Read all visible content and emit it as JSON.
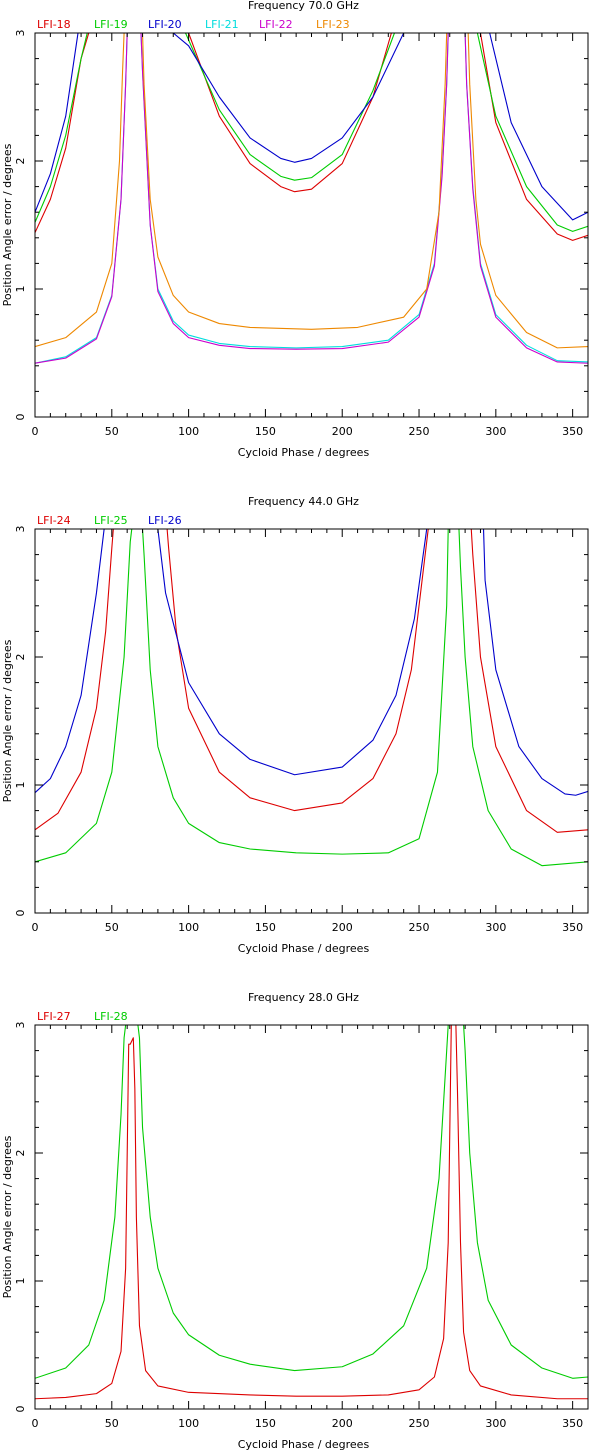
{
  "chart_data": [
    {
      "type": "line",
      "title": "Frequency  70.0 GHz",
      "xlabel": "Cycloid Phase / degrees",
      "ylabel": "Position Angle error / degrees",
      "xlim": [
        0,
        360
      ],
      "ylim": [
        0,
        3
      ],
      "xticks": [
        0,
        50,
        100,
        150,
        200,
        250,
        300,
        350
      ],
      "yticks": [
        0,
        1,
        2,
        3
      ],
      "grid": false,
      "legend_placement": "top-left",
      "series": [
        {
          "name": "LFI-18",
          "color": "#dd0000",
          "x": [
            0,
            10,
            20,
            30,
            35,
            100,
            120,
            140,
            160,
            169,
            180,
            200,
            220,
            232,
            290,
            300,
            320,
            340,
            350,
            360
          ],
          "y": [
            1.44,
            1.7,
            2.1,
            2.8,
            3.0,
            3.0,
            2.35,
            1.98,
            1.8,
            1.76,
            1.78,
            1.98,
            2.5,
            3.0,
            3.0,
            2.3,
            1.7,
            1.43,
            1.38,
            1.42
          ]
        },
        {
          "name": "LFI-19",
          "color": "#00cc00",
          "x": [
            0,
            10,
            20,
            30,
            34,
            98,
            120,
            140,
            160,
            169,
            180,
            200,
            220,
            234,
            288,
            300,
            320,
            340,
            350,
            360
          ],
          "y": [
            1.52,
            1.8,
            2.2,
            2.8,
            3.0,
            3.0,
            2.4,
            2.05,
            1.88,
            1.85,
            1.87,
            2.05,
            2.55,
            3.0,
            3.0,
            2.35,
            1.8,
            1.5,
            1.45,
            1.49
          ]
        },
        {
          "name": "LFI-20",
          "color": "#0000cc",
          "x": [
            0,
            10,
            20,
            28,
            90,
            100,
            120,
            140,
            160,
            169,
            180,
            200,
            220,
            240,
            296,
            310,
            330,
            350,
            360
          ],
          "y": [
            1.6,
            1.9,
            2.35,
            3.0,
            3.0,
            2.9,
            2.5,
            2.18,
            2.02,
            1.99,
            2.02,
            2.18,
            2.5,
            3.0,
            3.0,
            2.3,
            1.8,
            1.54,
            1.6
          ]
        },
        {
          "name": "LFI-21",
          "color": "#00dddd",
          "x": [
            0,
            20,
            40,
            50,
            56,
            59,
            60,
            69,
            70,
            75,
            80,
            90,
            100,
            120,
            140,
            170,
            200,
            230,
            250,
            260,
            265,
            268,
            269,
            280,
            281,
            285,
            290,
            300,
            320,
            340,
            360
          ],
          "y": [
            0.42,
            0.47,
            0.62,
            0.95,
            1.7,
            2.6,
            3.0,
            3.0,
            2.7,
            1.5,
            1.0,
            0.75,
            0.64,
            0.575,
            0.55,
            0.54,
            0.55,
            0.6,
            0.8,
            1.2,
            1.9,
            2.6,
            3.0,
            3.0,
            2.6,
            1.8,
            1.2,
            0.8,
            0.56,
            0.44,
            0.43
          ]
        },
        {
          "name": "LFI-22",
          "color": "#cc00cc",
          "x": [
            0,
            20,
            40,
            50,
            56,
            59,
            60,
            69,
            70,
            75,
            80,
            90,
            100,
            120,
            140,
            170,
            200,
            230,
            250,
            260,
            265,
            268,
            269,
            280,
            281,
            285,
            290,
            300,
            320,
            340,
            360
          ],
          "y": [
            0.42,
            0.46,
            0.61,
            0.94,
            1.7,
            2.6,
            3.0,
            3.0,
            2.7,
            1.5,
            0.98,
            0.73,
            0.62,
            0.56,
            0.535,
            0.53,
            0.535,
            0.585,
            0.78,
            1.18,
            1.88,
            2.6,
            3.0,
            3.0,
            2.6,
            1.78,
            1.18,
            0.78,
            0.54,
            0.43,
            0.42
          ]
        },
        {
          "name": "LFI-23",
          "color": "#ee8800",
          "x": [
            0,
            20,
            40,
            50,
            55,
            57,
            58,
            70,
            71,
            75,
            80,
            90,
            100,
            120,
            140,
            180,
            210,
            240,
            255,
            263,
            267,
            268,
            282,
            283,
            287,
            290,
            300,
            320,
            340,
            360
          ],
          "y": [
            0.55,
            0.62,
            0.82,
            1.2,
            2.0,
            2.7,
            3.0,
            3.0,
            2.6,
            1.7,
            1.25,
            0.95,
            0.82,
            0.73,
            0.7,
            0.685,
            0.7,
            0.78,
            1.0,
            1.6,
            2.6,
            3.0,
            3.0,
            2.6,
            1.7,
            1.35,
            0.95,
            0.66,
            0.54,
            0.55
          ]
        }
      ]
    },
    {
      "type": "line",
      "title": "Frequency  44.0 GHz",
      "xlabel": "Cycloid Phase / degrees",
      "ylabel": "Position Angle error / degrees",
      "xlim": [
        0,
        360
      ],
      "ylim": [
        0,
        3
      ],
      "xticks": [
        0,
        50,
        100,
        150,
        200,
        250,
        300,
        350
      ],
      "yticks": [
        0,
        1,
        2,
        3
      ],
      "grid": false,
      "legend_placement": "top-left",
      "series": [
        {
          "name": "LFI-24",
          "color": "#dd0000",
          "x": [
            0,
            15,
            30,
            40,
            46,
            50,
            51,
            86,
            87,
            92,
            100,
            120,
            140,
            169,
            200,
            220,
            235,
            245,
            252,
            256,
            257,
            284,
            285,
            290,
            300,
            320,
            340,
            360
          ],
          "y": [
            0.65,
            0.78,
            1.1,
            1.6,
            2.2,
            2.85,
            3.0,
            3.0,
            2.85,
            2.2,
            1.6,
            1.1,
            0.9,
            0.8,
            0.86,
            1.05,
            1.4,
            1.9,
            2.6,
            3.0,
            3.0,
            3.0,
            2.8,
            2.0,
            1.3,
            0.8,
            0.63,
            0.65
          ]
        },
        {
          "name": "LFI-25",
          "color": "#00cc00",
          "x": [
            0,
            20,
            40,
            50,
            58,
            62,
            63,
            70,
            71,
            75,
            80,
            90,
            100,
            120,
            140,
            170,
            200,
            230,
            250,
            262,
            268,
            269,
            276,
            277,
            280,
            285,
            295,
            310,
            330,
            360
          ],
          "y": [
            0.4,
            0.47,
            0.7,
            1.1,
            2.0,
            2.9,
            3.0,
            3.0,
            2.8,
            1.9,
            1.3,
            0.9,
            0.7,
            0.55,
            0.5,
            0.47,
            0.46,
            0.47,
            0.58,
            1.1,
            2.4,
            3.0,
            3.0,
            2.7,
            2.0,
            1.3,
            0.8,
            0.5,
            0.37,
            0.4
          ]
        },
        {
          "name": "LFI-26",
          "color": "#0000cc",
          "x": [
            0,
            10,
            20,
            30,
            40,
            45,
            80,
            85,
            100,
            120,
            140,
            169,
            200,
            220,
            235,
            247,
            255,
            256,
            292,
            293,
            300,
            315,
            330,
            345,
            352,
            360
          ],
          "y": [
            0.94,
            1.05,
            1.3,
            1.7,
            2.5,
            3.0,
            3.0,
            2.5,
            1.8,
            1.4,
            1.2,
            1.08,
            1.14,
            1.35,
            1.7,
            2.3,
            3.0,
            3.0,
            3.0,
            2.6,
            1.9,
            1.3,
            1.05,
            0.93,
            0.92,
            0.95
          ]
        }
      ]
    },
    {
      "type": "line",
      "title": "Frequency  28.0 GHz",
      "xlabel": "Cycloid Phase / degrees",
      "ylabel": "Position Angle error / degrees",
      "xlim": [
        0,
        360
      ],
      "ylim": [
        0,
        3
      ],
      "xticks": [
        0,
        50,
        100,
        150,
        200,
        250,
        300,
        350
      ],
      "yticks": [
        0,
        1,
        2,
        3
      ],
      "grid": false,
      "legend_placement": "top-left",
      "series": [
        {
          "name": "LFI-27",
          "color": "#dd0000",
          "x": [
            0,
            20,
            40,
            50,
            56,
            59,
            61,
            62,
            64,
            65,
            66,
            68,
            72,
            80,
            100,
            140,
            170,
            200,
            230,
            250,
            260,
            266,
            269,
            271,
            272,
            274,
            275,
            277,
            279,
            283,
            290,
            310,
            340,
            360
          ],
          "y": [
            0.08,
            0.09,
            0.12,
            0.2,
            0.45,
            1.1,
            2.85,
            2.85,
            2.9,
            2.5,
            1.5,
            0.65,
            0.3,
            0.18,
            0.13,
            0.11,
            0.1,
            0.1,
            0.11,
            0.15,
            0.25,
            0.55,
            1.3,
            3.0,
            3.0,
            3.0,
            2.5,
            1.3,
            0.6,
            0.3,
            0.18,
            0.11,
            0.08,
            0.08
          ]
        },
        {
          "name": "LFI-28",
          "color": "#00cc00",
          "x": [
            0,
            20,
            35,
            45,
            52,
            56,
            58,
            59,
            67,
            68,
            70,
            75,
            80,
            90,
            100,
            120,
            140,
            169,
            200,
            220,
            240,
            255,
            263,
            268,
            269,
            279,
            280,
            283,
            288,
            295,
            310,
            330,
            350,
            360
          ],
          "y": [
            0.24,
            0.32,
            0.5,
            0.85,
            1.5,
            2.3,
            2.9,
            3.0,
            3.0,
            2.9,
            2.2,
            1.5,
            1.1,
            0.75,
            0.58,
            0.42,
            0.35,
            0.3,
            0.33,
            0.43,
            0.65,
            1.1,
            1.8,
            2.8,
            3.0,
            3.0,
            2.8,
            2.0,
            1.3,
            0.85,
            0.5,
            0.32,
            0.24,
            0.25
          ]
        }
      ]
    }
  ]
}
